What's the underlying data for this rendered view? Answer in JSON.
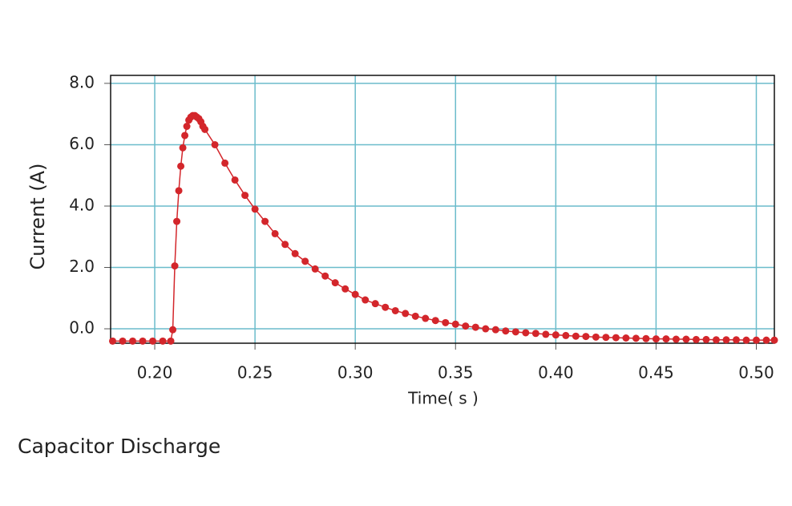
{
  "chart_data": {
    "type": "scatter",
    "title": "Capacitor Discharge",
    "x_label": "Time( s )",
    "y_label": "Current (A)",
    "xlim": [
      0.178,
      0.509
    ],
    "ylim": [
      -0.47,
      8.26
    ],
    "xticks": [
      {
        "value": 0.2,
        "label": "0.20"
      },
      0.25,
      {
        "value": 0.3,
        "label": "0.30"
      },
      0.35,
      {
        "value": 0.4,
        "label": "0.40"
      },
      0.45,
      {
        "value": 0.5,
        "label": "0.50"
      }
    ],
    "yticks": [
      {
        "value": 0,
        "label": "0.0"
      },
      {
        "value": 2,
        "label": "2.0"
      },
      {
        "value": 4,
        "label": "4.0"
      },
      {
        "value": 6,
        "label": "6.0"
      },
      {
        "value": 8,
        "label": "8.0"
      }
    ],
    "grid": true,
    "connect": true,
    "series": [
      {
        "name": "Current",
        "color": "#d3262b",
        "x": [
          0.179,
          0.184,
          0.189,
          0.194,
          0.199,
          0.204,
          0.208,
          0.209,
          0.21,
          0.211,
          0.212,
          0.213,
          0.214,
          0.215,
          0.216,
          0.217,
          0.218,
          0.219,
          0.22,
          0.221,
          0.222,
          0.223,
          0.224,
          0.225,
          0.23,
          0.235,
          0.24,
          0.245,
          0.25,
          0.255,
          0.26,
          0.265,
          0.27,
          0.275,
          0.28,
          0.285,
          0.29,
          0.295,
          0.3,
          0.305,
          0.31,
          0.315,
          0.32,
          0.325,
          0.33,
          0.335,
          0.34,
          0.345,
          0.35,
          0.355,
          0.36,
          0.365,
          0.37,
          0.375,
          0.38,
          0.385,
          0.39,
          0.395,
          0.4,
          0.405,
          0.41,
          0.415,
          0.42,
          0.425,
          0.43,
          0.435,
          0.44,
          0.445,
          0.45,
          0.455,
          0.46,
          0.465,
          0.47,
          0.475,
          0.48,
          0.485,
          0.49,
          0.495,
          0.5,
          0.505,
          0.509
        ],
        "values": [
          -0.4,
          -0.4,
          -0.4,
          -0.4,
          -0.4,
          -0.4,
          -0.4,
          -0.03,
          2.05,
          3.5,
          4.5,
          5.3,
          5.9,
          6.3,
          6.6,
          6.8,
          6.9,
          6.95,
          6.95,
          6.9,
          6.85,
          6.75,
          6.6,
          6.5,
          6.0,
          5.4,
          4.85,
          4.35,
          3.9,
          3.5,
          3.1,
          2.75,
          2.45,
          2.2,
          1.95,
          1.72,
          1.5,
          1.3,
          1.12,
          0.94,
          0.82,
          0.7,
          0.59,
          0.5,
          0.41,
          0.34,
          0.27,
          0.2,
          0.15,
          0.09,
          0.05,
          0.0,
          -0.03,
          -0.07,
          -0.1,
          -0.13,
          -0.15,
          -0.18,
          -0.2,
          -0.22,
          -0.24,
          -0.25,
          -0.27,
          -0.28,
          -0.29,
          -0.3,
          -0.31,
          -0.32,
          -0.33,
          -0.33,
          -0.34,
          -0.34,
          -0.35,
          -0.35,
          -0.36,
          -0.36,
          -0.36,
          -0.37,
          -0.37,
          -0.37,
          -0.37
        ]
      }
    ]
  }
}
